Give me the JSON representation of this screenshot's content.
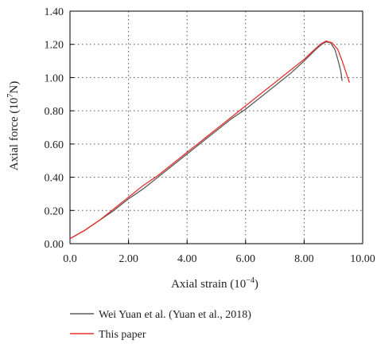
{
  "chart_data": {
    "type": "line",
    "xlabel": "Axial strain (10",
    "xlabel_sup": "−4",
    "xlabel_end": ")",
    "ylabel": "Axial force (10",
    "ylabel_sup": "7",
    "ylabel_end": "N)",
    "xlim": [
      0,
      10
    ],
    "ylim": [
      0,
      1.4
    ],
    "grid": true,
    "legend_position": "bottom",
    "x_ticks": [
      "0.0",
      "2.00",
      "4.00",
      "6.00",
      "8.00",
      "10.00"
    ],
    "y_ticks": [
      "0.00",
      "0.20",
      "0.40",
      "0.60",
      "0.80",
      "1.00",
      "1.20",
      "1.40"
    ],
    "series": [
      {
        "name": "Wei Yuan et al. (Yuan et al., 2018)",
        "color": "#5a5a5a",
        "x": [
          0.0,
          0.5,
          1.0,
          1.5,
          2.0,
          2.5,
          3.0,
          3.5,
          4.0,
          4.5,
          5.0,
          5.5,
          6.0,
          6.5,
          7.0,
          7.5,
          8.0,
          8.4,
          8.6,
          8.75,
          8.9,
          9.05,
          9.15,
          9.25,
          9.3
        ],
        "y": [
          0.03,
          0.08,
          0.14,
          0.2,
          0.27,
          0.33,
          0.4,
          0.47,
          0.54,
          0.61,
          0.68,
          0.75,
          0.81,
          0.88,
          0.95,
          1.02,
          1.1,
          1.17,
          1.2,
          1.215,
          1.21,
          1.17,
          1.11,
          1.04,
          0.98
        ]
      },
      {
        "name": "This paper",
        "color": "#e8302a",
        "x": [
          0.0,
          0.5,
          1.0,
          1.5,
          2.0,
          2.5,
          3.0,
          3.5,
          4.0,
          4.5,
          5.0,
          5.5,
          6.0,
          6.5,
          7.0,
          7.5,
          8.0,
          8.3,
          8.55,
          8.75,
          8.95,
          9.15,
          9.3,
          9.45,
          9.55
        ],
        "y": [
          0.03,
          0.08,
          0.14,
          0.21,
          0.28,
          0.35,
          0.41,
          0.48,
          0.55,
          0.62,
          0.69,
          0.76,
          0.83,
          0.9,
          0.97,
          1.04,
          1.11,
          1.16,
          1.2,
          1.22,
          1.21,
          1.17,
          1.1,
          1.02,
          0.97
        ]
      }
    ]
  }
}
